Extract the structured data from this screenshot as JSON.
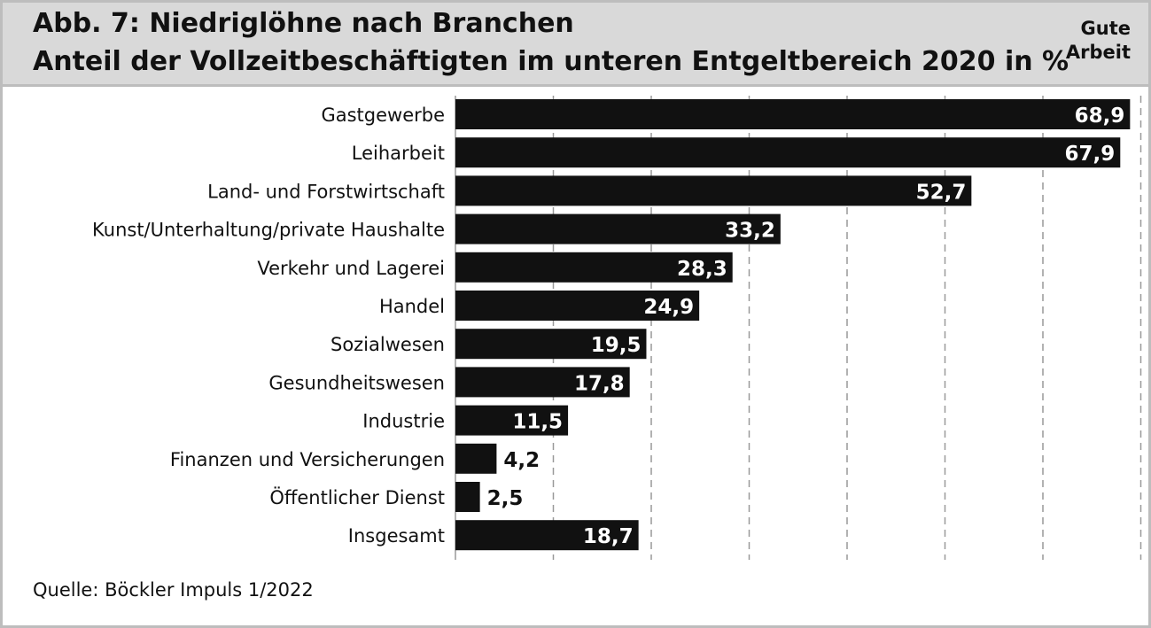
{
  "header": {
    "title": "Abb. 7: Niedriglöhne nach Branchen",
    "subtitle": "Anteil der Vollzeitbeschäftigten im unteren Entgeltbereich 2020 in %",
    "brand": "Gute Arbeit"
  },
  "footer": {
    "source": "Quelle: Böckler Impuls 1/2022"
  },
  "colors": {
    "bar": "#111111",
    "header_bg": "#d9d9d9",
    "frame": "#bdbdbd",
    "grid": "#999999"
  },
  "chart_data": {
    "type": "bar",
    "orientation": "horizontal",
    "categories": [
      "Gastgewerbe",
      "Leiharbeit",
      "Land- und Forstwirtschaft",
      "Kunst/Unterhaltung/private Haushalte",
      "Verkehr und Lagerei",
      "Handel",
      "Sozialwesen",
      "Gesundheitswesen",
      "Industrie",
      "Finanzen und Versicherungen",
      "Öffentlicher Dienst",
      "Insgesamt"
    ],
    "values": [
      68.9,
      67.9,
      52.7,
      33.2,
      28.3,
      24.9,
      19.5,
      17.8,
      11.5,
      4.2,
      2.5,
      18.7
    ],
    "value_labels": [
      "68,9",
      "67,9",
      "52,7",
      "33,2",
      "28,3",
      "24,9",
      "19,5",
      "17,8",
      "11,5",
      "4,2",
      "2,5",
      "18,7"
    ],
    "xlim": [
      0,
      70
    ],
    "grid": "vertical dashed",
    "legend": "none"
  }
}
